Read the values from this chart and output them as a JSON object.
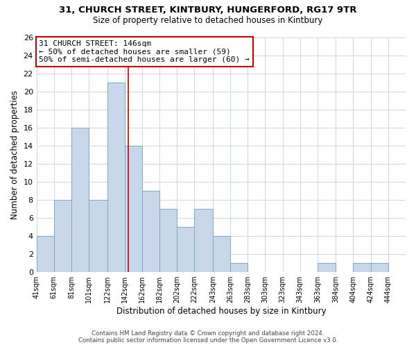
{
  "title1": "31, CHURCH STREET, KINTBURY, HUNGERFORD, RG17 9TR",
  "title2": "Size of property relative to detached houses in Kintbury",
  "xlabel": "Distribution of detached houses by size in Kintbury",
  "ylabel": "Number of detached properties",
  "bin_labels": [
    "41sqm",
    "61sqm",
    "81sqm",
    "101sqm",
    "122sqm",
    "142sqm",
    "162sqm",
    "182sqm",
    "202sqm",
    "222sqm",
    "243sqm",
    "263sqm",
    "283sqm",
    "303sqm",
    "323sqm",
    "343sqm",
    "363sqm",
    "384sqm",
    "404sqm",
    "424sqm",
    "444sqm"
  ],
  "bin_edges": [
    41,
    61,
    81,
    101,
    122,
    142,
    162,
    182,
    202,
    222,
    243,
    263,
    283,
    303,
    323,
    343,
    363,
    384,
    404,
    424,
    444
  ],
  "bar_heights": [
    4,
    8,
    16,
    8,
    21,
    14,
    9,
    7,
    5,
    7,
    4,
    1,
    0,
    0,
    0,
    0,
    1,
    0,
    1,
    1,
    0
  ],
  "bar_color": "#c8d8ea",
  "bar_edge_color": "#7aaac8",
  "vline_x": 146,
  "vline_color": "#cc0000",
  "ylim": [
    0,
    26
  ],
  "yticks": [
    0,
    2,
    4,
    6,
    8,
    10,
    12,
    14,
    16,
    18,
    20,
    22,
    24,
    26
  ],
  "annotation_line1": "31 CHURCH STREET: 146sqm",
  "annotation_line2": "← 50% of detached houses are smaller (59)",
  "annotation_line3": "50% of semi-detached houses are larger (60) →",
  "footer": "Contains HM Land Registry data © Crown copyright and database right 2024.\nContains public sector information licensed under the Open Government Licence v3.0.",
  "bg_color": "#ffffff",
  "grid_color": "#c8d8ea"
}
